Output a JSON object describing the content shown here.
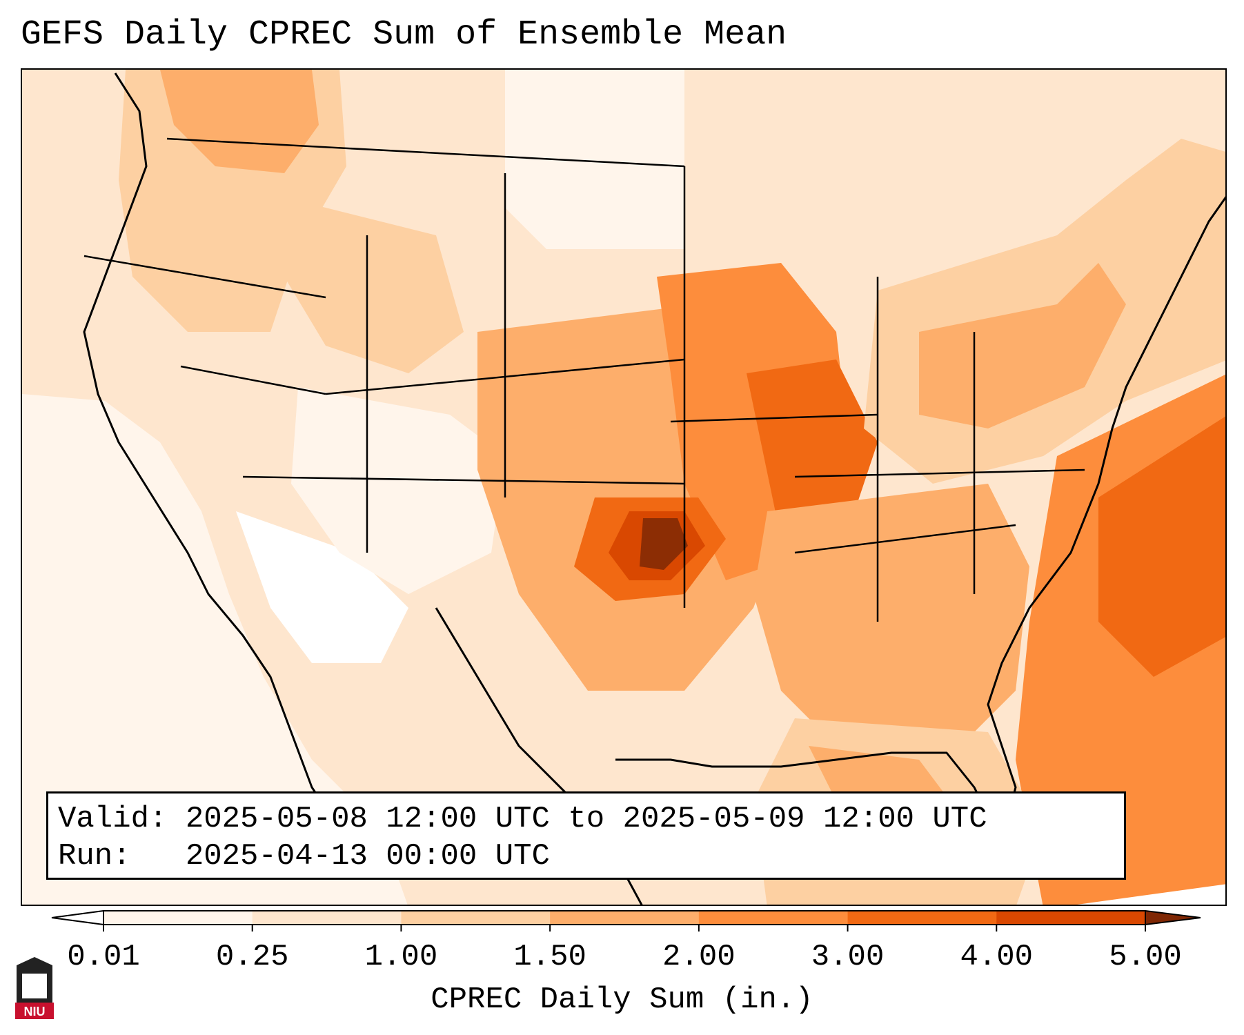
{
  "title": "GEFS Daily CPREC Sum of Ensemble Mean",
  "info": {
    "valid_line": "Valid: 2025-05-08 12:00 UTC to 2025-05-09 12:00 UTC",
    "run_line": "Run:   2025-04-13 00:00 UTC"
  },
  "colorbar": {
    "title": "CPREC Daily Sum (in.)",
    "ticks": [
      "0.01",
      "0.25",
      "1.00",
      "1.50",
      "2.00",
      "3.00",
      "4.00",
      "5.00"
    ],
    "colors": [
      "#fff5eb",
      "#fee6ce",
      "#fdd0a2",
      "#fdae6b",
      "#fd8d3c",
      "#f16913",
      "#d94801",
      "#8c2d04"
    ],
    "under_color": "#ffffff",
    "over_color": "#7f2704"
  },
  "logo": {
    "label": "NIU",
    "color": "#c8102e"
  }
}
